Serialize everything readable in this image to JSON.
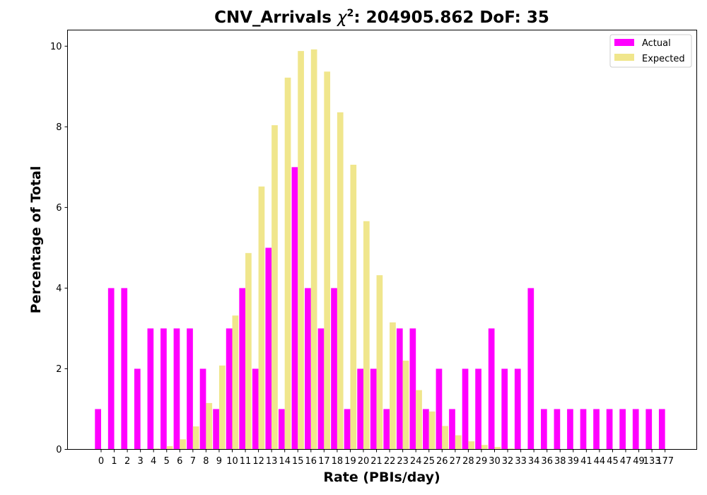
{
  "chart_data": {
    "type": "bar",
    "title_prefix": "CNV_Arrivals ",
    "title_chi": "χ",
    "title_sup": "2",
    "title_suffix": ": 204905.862 DoF: 35",
    "xlabel": "Rate (PBIs/day)",
    "ylabel": "Percentage of Total",
    "ylim": [
      0,
      10.4
    ],
    "yticks": [
      "0",
      "2",
      "4",
      "6",
      "8",
      "10"
    ],
    "grid": false,
    "legend_position": "top-right",
    "categories": [
      "0",
      "1",
      "2",
      "3",
      "4",
      "5",
      "6",
      "7",
      "8",
      "9",
      "10",
      "11",
      "12",
      "13",
      "14",
      "15",
      "16",
      "17",
      "18",
      "19",
      "20",
      "21",
      "22",
      "23",
      "24",
      "25",
      "26",
      "27",
      "28",
      "29",
      "30",
      "32",
      "33",
      "34",
      "36",
      "38",
      "39",
      "41",
      "44",
      "45",
      "47",
      "49",
      "133",
      "177"
    ],
    "series": [
      {
        "name": "Actual",
        "color": "#ff00ff",
        "values": [
          1,
          4,
          4,
          2,
          3,
          3,
          3,
          3,
          2,
          1,
          3,
          4,
          2,
          5,
          1,
          7,
          4,
          3,
          4,
          1,
          2,
          2,
          1,
          3,
          3,
          1,
          2,
          1,
          2,
          2,
          3,
          2,
          2,
          4,
          1,
          1,
          1,
          1,
          1,
          1,
          1,
          1,
          1,
          1
        ]
      },
      {
        "name": "Expected",
        "color": "#f0e68c",
        "values": [
          0,
          0,
          0,
          0.005,
          0.02,
          0.08,
          0.25,
          0.57,
          1.15,
          2.08,
          3.32,
          4.87,
          6.52,
          8.04,
          9.22,
          9.88,
          9.92,
          9.37,
          8.36,
          7.06,
          5.66,
          4.32,
          3.15,
          2.2,
          1.47,
          0.94,
          0.58,
          0.35,
          0.2,
          0.11,
          0.06,
          0.02,
          0.01,
          0.005,
          0,
          0,
          0,
          0,
          0,
          0,
          0,
          0,
          0,
          0
        ]
      }
    ]
  }
}
